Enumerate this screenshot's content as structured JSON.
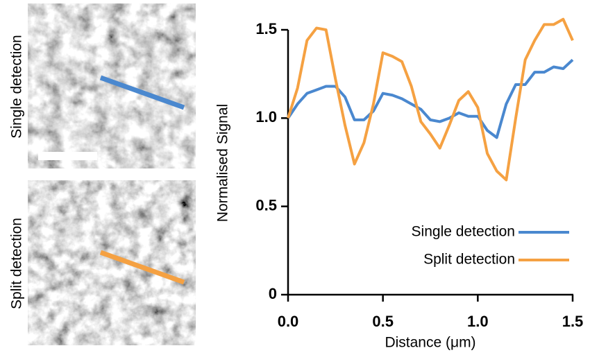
{
  "chart_data": {
    "type": "line",
    "xlabel": "Distance (μm)",
    "ylabel": "Normalised Signal",
    "x": [
      0,
      0.05,
      0.1,
      0.15,
      0.2,
      0.25,
      0.3,
      0.35,
      0.4,
      0.45,
      0.5,
      0.55,
      0.6,
      0.65,
      0.7,
      0.75,
      0.8,
      0.85,
      0.9,
      0.95,
      1.0,
      1.05,
      1.1,
      1.15,
      1.2,
      1.25,
      1.3,
      1.35,
      1.4,
      1.45,
      1.5
    ],
    "series": [
      {
        "name": "Single detection",
        "color": "#4a88cf",
        "values": [
          1.0,
          1.08,
          1.14,
          1.16,
          1.18,
          1.18,
          1.12,
          0.99,
          0.99,
          1.04,
          1.14,
          1.13,
          1.11,
          1.08,
          1.05,
          0.99,
          0.98,
          1.0,
          1.03,
          1.01,
          1.01,
          0.93,
          0.89,
          1.08,
          1.19,
          1.19,
          1.26,
          1.26,
          1.29,
          1.28,
          1.33
        ]
      },
      {
        "name": "Split detection",
        "color": "#f5a142",
        "values": [
          1.0,
          1.17,
          1.44,
          1.51,
          1.5,
          1.22,
          0.96,
          0.74,
          0.86,
          1.08,
          1.37,
          1.35,
          1.32,
          1.18,
          0.98,
          0.91,
          0.83,
          0.96,
          1.1,
          1.15,
          1.06,
          0.8,
          0.7,
          0.65,
          1.0,
          1.33,
          1.44,
          1.53,
          1.53,
          1.56,
          1.44
        ]
      }
    ],
    "xlim": [
      0,
      1.5
    ],
    "xticks": [
      {
        "value": 0,
        "label": "0.0"
      },
      0.5,
      {
        "value": 1,
        "label": "1.0"
      },
      1.5
    ],
    "ylim": [
      0,
      1.5
    ],
    "yticks": [
      0,
      0.5,
      {
        "value": 1,
        "label": "1.0"
      },
      1.5
    ],
    "legend": "lower right"
  }
}
